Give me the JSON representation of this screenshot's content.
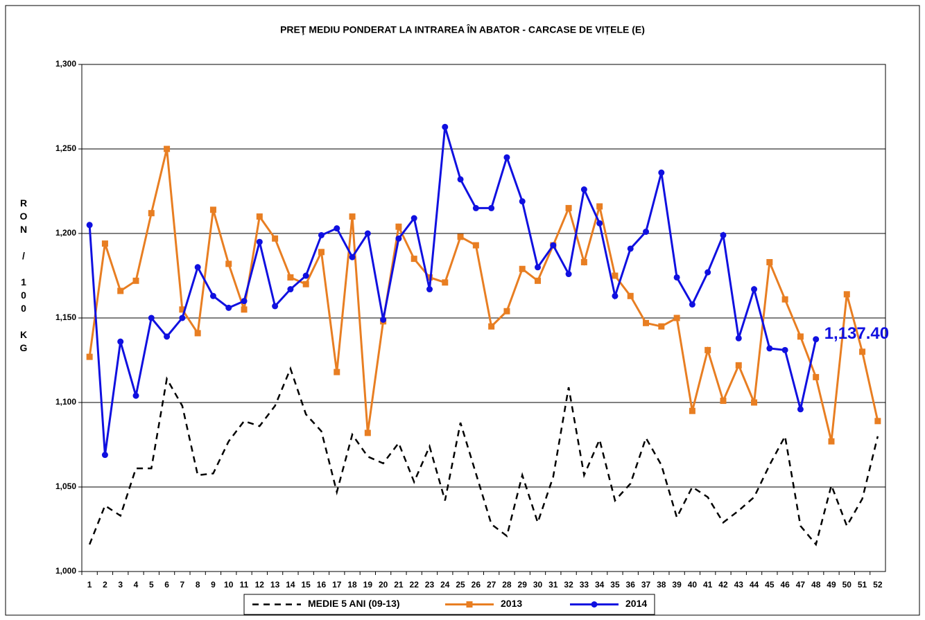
{
  "chart_data": {
    "type": "line",
    "title": "PREŢ MEDIU PONDERAT LA INTRAREA ÎN ABATOR - CARCASE DE VIȚELE (E)",
    "y_label": "RON / 100 KG",
    "categories": [
      "1",
      "2",
      "3",
      "4",
      "5",
      "6",
      "7",
      "8",
      "9",
      "10",
      "11",
      "12",
      "13",
      "14",
      "15",
      "16",
      "17",
      "18",
      "19",
      "20",
      "21",
      "22",
      "23",
      "24",
      "25",
      "26",
      "27",
      "28",
      "29",
      "30",
      "31",
      "32",
      "33",
      "34",
      "35",
      "36",
      "37",
      "38",
      "39",
      "40",
      "41",
      "42",
      "43",
      "44",
      "45",
      "46",
      "47",
      "48",
      "49",
      "50",
      "51",
      "52"
    ],
    "ylim": [
      1000,
      1300
    ],
    "yticks": [
      {
        "value": 1000,
        "label": "1,000"
      },
      {
        "value": 1050,
        "label": "1,050"
      },
      {
        "value": 1100,
        "label": "1,100"
      },
      {
        "value": 1150,
        "label": "1,150"
      },
      {
        "value": 1200,
        "label": "1,200"
      },
      {
        "value": 1250,
        "label": "1,250"
      },
      {
        "value": 1300,
        "label": "1,300"
      }
    ],
    "grid": true,
    "legend": "bottom",
    "series": [
      {
        "name": "MEDIE 5 ANI (09-13)",
        "color": "#000000",
        "dashed": true,
        "marker": null,
        "values": [
          1016,
          1039,
          1033,
          1061,
          1061,
          1114,
          1098,
          1057,
          1058,
          1077,
          1089,
          1086,
          1098,
          1120,
          1093,
          1083,
          1047,
          1081,
          1068,
          1064,
          1076,
          1053,
          1074,
          1042,
          1088,
          1058,
          1028,
          1021,
          1057,
          1029,
          1056,
          1109,
          1057,
          1078,
          1042,
          1052,
          1079,
          1063,
          1032,
          1050,
          1044,
          1029,
          1036,
          1044,
          1063,
          1080,
          1027,
          1016,
          1051,
          1027,
          1043,
          1080
        ]
      },
      {
        "name": "2013",
        "color": "#e87e22",
        "dashed": false,
        "marker": "square",
        "values": [
          1127,
          1194,
          1166,
          1172,
          1212,
          1250,
          1155,
          1141,
          1214,
          1182,
          1155,
          1210,
          1197,
          1174,
          1170,
          1189,
          1118,
          1210,
          1082,
          1148,
          1204,
          1185,
          1174,
          1171,
          1198,
          1193,
          1145,
          1154,
          1179,
          1172,
          1193,
          1215,
          1183,
          1216,
          1175,
          1163,
          1147,
          1145,
          1150,
          1095,
          1131,
          1101,
          1122,
          1100,
          1183,
          1161,
          1139,
          1115,
          1077,
          1164,
          1130,
          1089
        ]
      },
      {
        "name": "2014",
        "color": "#1010e0",
        "dashed": false,
        "marker": "circle",
        "values": [
          1205,
          1069,
          1136,
          1104,
          1150,
          1139,
          1150,
          1180,
          1163,
          1156,
          1160,
          1195,
          1157,
          1167,
          1175,
          1199,
          1203,
          1186,
          1200,
          1149,
          1197,
          1209,
          1167,
          1263,
          1232,
          1215,
          1215,
          1245,
          1219,
          1180,
          1193,
          1176,
          1226,
          1206,
          1163,
          1191,
          1201,
          1236,
          1174,
          1158,
          1177,
          1199,
          1138,
          1167,
          1132,
          1131,
          1096,
          1137.4,
          null,
          null,
          null,
          null
        ],
        "value_labels": [
          null,
          null,
          null,
          null,
          null,
          null,
          null,
          null,
          null,
          null,
          null,
          null,
          null,
          null,
          null,
          null,
          null,
          null,
          null,
          null,
          null,
          null,
          null,
          null,
          null,
          null,
          null,
          null,
          null,
          null,
          null,
          null,
          null,
          null,
          null,
          null,
          null,
          null,
          null,
          null,
          null,
          null,
          null,
          null,
          null,
          null,
          null,
          "1,137.40",
          null,
          null,
          null,
          null
        ]
      }
    ]
  }
}
